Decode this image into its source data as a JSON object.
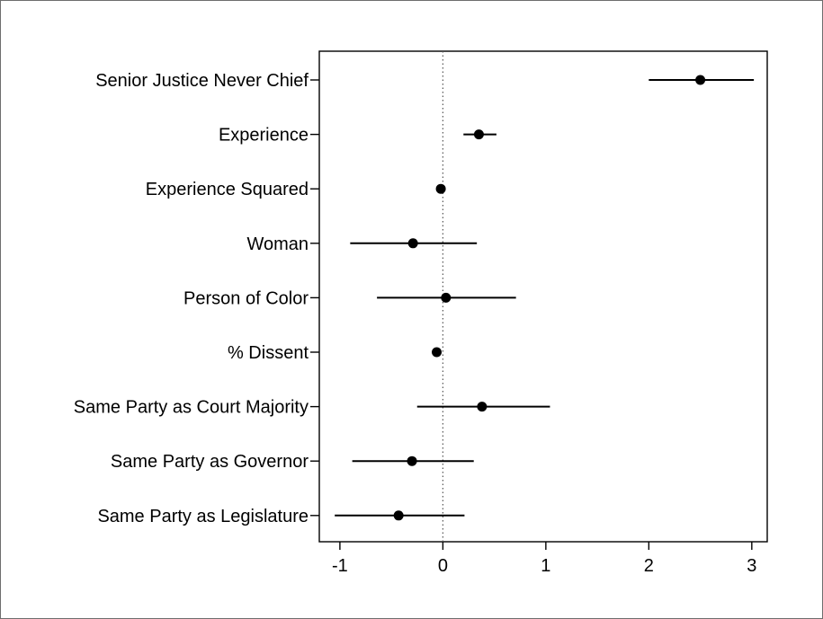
{
  "chart_data": {
    "type": "coefficient_plot",
    "orientation": "horizontal",
    "xlim": [
      -1.2,
      3.15
    ],
    "x_ticks": [
      -1,
      0,
      1,
      2,
      3
    ],
    "x_tick_labels": [
      "-1",
      "0",
      "1",
      "2",
      "3"
    ],
    "reference_line": 0,
    "grid": false,
    "colors": {
      "marker": "#000000",
      "reference_line": "#555555"
    },
    "series": [
      {
        "category": "Senior Justice Never Chief",
        "estimate": 2.5,
        "ci": [
          2.0,
          3.02
        ]
      },
      {
        "category": "Experience",
        "estimate": 0.35,
        "ci": [
          0.2,
          0.52
        ]
      },
      {
        "category": "Experience Squared",
        "estimate": -0.02,
        "ci": [
          -0.04,
          0.0
        ]
      },
      {
        "category": "Woman",
        "estimate": -0.29,
        "ci": [
          -0.9,
          0.33
        ]
      },
      {
        "category": "Person of Color",
        "estimate": 0.03,
        "ci": [
          -0.64,
          0.71
        ]
      },
      {
        "category": "% Dissent",
        "estimate": -0.06,
        "ci": [
          -0.08,
          -0.04
        ]
      },
      {
        "category": "Same Party as Court Majority",
        "estimate": 0.38,
        "ci": [
          -0.25,
          1.04
        ]
      },
      {
        "category": "Same Party as Governor",
        "estimate": -0.3,
        "ci": [
          -0.88,
          0.3
        ]
      },
      {
        "category": "Same Party as Legislature",
        "estimate": -0.43,
        "ci": [
          -1.05,
          0.21
        ]
      }
    ]
  }
}
